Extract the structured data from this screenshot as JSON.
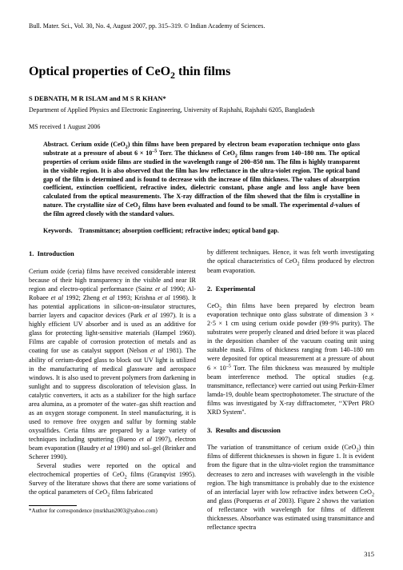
{
  "header": "Bull. Mater. Sci., Vol. 30, No. 4, August 2007, pp. 315–319. © Indian Academy of Sciences.",
  "title_html": "Optical properties of CeO<sub>2</sub> thin films",
  "authors": "S  DEBNATH,  M  R  ISLAM  and  M  S  R  KHAN*",
  "affiliation": "Department of Applied Physics and Electronic Engineering, University of Rajshahi, Rajshahi 6205, Bangladesh",
  "ms_received": "MS received 1 August 2006",
  "abstract_label": "Abstract.",
  "abstract_body_html": "Cerium oxide (CeO<sub>2</sub>) thin films have been prepared by electron beam evaporation technique onto glass substrate at a pressure of about 6 × 10<sup>–5</sup> Torr. The thickness of CeO<sub>2</sub> films ranges from 140–180 nm. The optical properties of cerium oxide films are studied in the wavelength range of 200–850 nm. The film is highly transparent in the visible region. It is also observed that the film has low reflectance in the ultra-violet region. The optical band gap of the film is determined and is found to decrease with the increase of film thickness. The values of absorption coefficient, extinction coefficient, refractive index, dielectric constant, phase angle and loss angle have been calculated from the optical measurements. The X-ray diffraction of the film showed that the film is crystalline in nature. The crystallite size of CeO<sub>2</sub> films have been evaluated and found to be small. The experimental <i>d</i>-values of the film agreed closely with the standard values.",
  "keywords_label": "Keywords.",
  "keywords_body": "Transmittance; absorption coefficient; refractive index; optical band gap.",
  "sections": {
    "s1": {
      "num": "1.",
      "title": "Introduction"
    },
    "s2": {
      "num": "2.",
      "title": "Experimental"
    },
    "s3": {
      "num": "3.",
      "title": "Results and discussion"
    }
  },
  "col1": {
    "p1_html": "Cerium oxide (ceria) films have received considerable interest because of their high transparency in the visible and near IR region and electro-optical performance (Sainz <i>et al</i> 1990; Al-Robaee <i>et al</i> 1992; Zheng <i>et al</i> 1993; Krishna <i>et al</i> 1998). It has potential applications in silicon-on-insulator structures, barrier layers and capacitor devices (Park <i>et al</i> 1997). It is a highly efficient UV absorber and is used as an additive for glass for protecting light-sensitive materials (Hampel 1960). Films are capable of corrosion protection of metals and as coating for use as catalyst support (Nelson <i>et al</i> 1981). The ability of cerium-doped glass to block out UV light is utilized in the manufacturing of medical glassware and aerospace windows. It is also used to prevent polymers from darkening in sunlight and to suppress discoloration of television glass. In catalytic converters, it acts as a stabilizer for the high surface area alumina, as a promoter of the water–gas shift reaction and as an oxygen storage component. In steel manufacturing, it is used to remove free oxygen and sulfur by forming stable oxysulfides. Ceria films are prepared by a large variety of techniques including sputtering (Bueno <i>et al</i> 1997), electron beam evaporation (Baudry <i>et al</i> 1990) and sol–gel (Brinker and Scherer 1990).",
    "p2_html": "Several studies were reported on the optical and electrochemical properties of CeO<sub>2</sub> films (Granqvist 1995). Survey of the literature shows that there are some variations of the optical parameters of CeO<sub>2</sub> films fabricated"
  },
  "col2": {
    "p0_html": "by different techniques. Hence, it was felt worth investigating the optical characteristics of CeO<sub>2</sub> films produced by electron beam evaporation.",
    "p1_html": "CeO<sub>2</sub> thin films have been prepared by electron beam evaporation technique onto glass substrate of dimension 3 × 2·5 × 1 cm using cerium oxide powder (99·9% purity). The substrates were properly cleaned and dried before it was placed in the deposition chamber of the vacuum coating unit using suitable mask. Films of thickness ranging from 140–180 nm were deposited for optical measurement at a pressure of about 6 × 10<sup>–5</sup> Torr. The film thickness was measured by multiple beam interference method. The optical studies (e.g. transmittance, reflectance) were carried out using Perkin-Elmer lamda-19, double beam spectrophotometer. The structure of the films was investigated by X-ray diffractometer, ‘‘X'Pert PRO XRD System''.",
    "p2_html": "The variation of transmittance of cerium oxide (CeO<sub>2</sub>) thin films of different thicknesses is shown in figure 1. It is evident from the figure that in the ultra-violet region the transmittance decreases to zero and increases with wavelength in the visible region. The high transmittance is probably due to the existence of an interfacial layer with low refractive index between CeO<sub>2</sub> and glass (Porqueras <i>et al</i> 2003). Figure 2 shows the variation of reflectance with wavelength for films of different thicknesses. Absorbance was estimated using transmittance and reflectance spectra"
  },
  "footnote": "*Author for correspondence (msrkhan2003@yahoo.com)",
  "pagenum": "315"
}
